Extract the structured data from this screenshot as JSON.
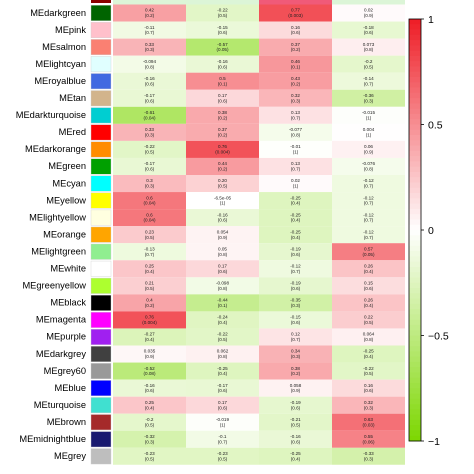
{
  "chart_data": {
    "type": "heatmap",
    "rows": [
      {
        "name": "MEdarkgreen",
        "swatch": "#006400",
        "cells": [
          {
            "v": "0.42",
            "p": "(0.2)"
          },
          {
            "v": "-0.22",
            "p": "(0.5)"
          },
          {
            "v": "0.77",
            "p": "(0.003)"
          },
          {
            "v": "0.02",
            "p": "(0.9)"
          }
        ]
      },
      {
        "name": "MEpink",
        "swatch": "#ffc0cb",
        "cells": [
          {
            "v": "-0.11",
            "p": "(0.7)"
          },
          {
            "v": "-0.15",
            "p": "(0.6)"
          },
          {
            "v": "0.16",
            "p": "(0.6)"
          },
          {
            "v": "-0.18",
            "p": "(0.6)"
          }
        ]
      },
      {
        "name": "MEsalmon",
        "swatch": "#fa8072",
        "cells": [
          {
            "v": "0.33",
            "p": "(0.3)"
          },
          {
            "v": "-0.57",
            "p": "(0.05)"
          },
          {
            "v": "0.37",
            "p": "(0.2)"
          },
          {
            "v": "0.073",
            "p": "(0.8)"
          }
        ]
      },
      {
        "name": "MElightcyan",
        "swatch": "#e0ffff",
        "cells": [
          {
            "v": "-0.094",
            "p": "(0.8)"
          },
          {
            "v": "-0.16",
            "p": "(0.6)"
          },
          {
            "v": "0.46",
            "p": "(0.1)"
          },
          {
            "v": "-0.2",
            "p": "(0.5)"
          }
        ]
      },
      {
        "name": "MEroyalblue",
        "swatch": "#4169e1",
        "cells": [
          {
            "v": "-0.16",
            "p": "(0.6)"
          },
          {
            "v": "0.5",
            "p": "(0.1)"
          },
          {
            "v": "0.43",
            "p": "(0.2)"
          },
          {
            "v": "-0.14",
            "p": "(0.7)"
          }
        ]
      },
      {
        "name": "MEtan",
        "swatch": "#d2b48c",
        "cells": [
          {
            "v": "-0.17",
            "p": "(0.6)"
          },
          {
            "v": "0.17",
            "p": "(0.6)"
          },
          {
            "v": "0.32",
            "p": "(0.3)"
          },
          {
            "v": "-0.36",
            "p": "(0.3)"
          }
        ]
      },
      {
        "name": "MEdarkturquoise",
        "swatch": "#00ced1",
        "cells": [
          {
            "v": "-0.61",
            "p": "(0.04)"
          },
          {
            "v": "0.38",
            "p": "(0.2)"
          },
          {
            "v": "0.13",
            "p": "(0.7)"
          },
          {
            "v": "-0.015",
            "p": "(1)"
          }
        ]
      },
      {
        "name": "MEred",
        "swatch": "#ff0000",
        "cells": [
          {
            "v": "0.33",
            "p": "(0.3)"
          },
          {
            "v": "0.37",
            "p": "(0.2)"
          },
          {
            "v": "-0.077",
            "p": "(0.8)"
          },
          {
            "v": "0.004",
            "p": "(1)"
          }
        ]
      },
      {
        "name": "MEdarkorange",
        "swatch": "#ff8c00",
        "cells": [
          {
            "v": "-0.22",
            "p": "(0.5)"
          },
          {
            "v": "0.76",
            "p": "(0.004)"
          },
          {
            "v": "-0.01",
            "p": "(1)"
          },
          {
            "v": "0.06",
            "p": "(0.9)"
          }
        ]
      },
      {
        "name": "MEgreen",
        "swatch": "#00a000",
        "cells": [
          {
            "v": "-0.17",
            "p": "(0.6)"
          },
          {
            "v": "0.44",
            "p": "(0.2)"
          },
          {
            "v": "0.13",
            "p": "(0.7)"
          },
          {
            "v": "-0.076",
            "p": "(0.8)"
          }
        ]
      },
      {
        "name": "MEcyan",
        "swatch": "#00ffff",
        "cells": [
          {
            "v": "0.3",
            "p": "(0.3)"
          },
          {
            "v": "0.20",
            "p": "(0.5)"
          },
          {
            "v": "0.02",
            "p": "(1)"
          },
          {
            "v": "-0.12",
            "p": "(0.7)"
          }
        ]
      },
      {
        "name": "MEyellow",
        "swatch": "#ffff00",
        "cells": [
          {
            "v": "0.6",
            "p": "(0.04)"
          },
          {
            "v": "-6.5e-05",
            "p": "(1)"
          },
          {
            "v": "-0.25",
            "p": "(0.4)"
          },
          {
            "v": "-0.12",
            "p": "(0.7)"
          }
        ]
      },
      {
        "name": "MElightyellow",
        "swatch": "#ffffe0",
        "cells": [
          {
            "v": "0.6",
            "p": "(0.04)"
          },
          {
            "v": "-0.16",
            "p": "(0.6)"
          },
          {
            "v": "-0.25",
            "p": "(0.4)"
          },
          {
            "v": "-0.12",
            "p": "(0.7)"
          }
        ]
      },
      {
        "name": "MEorange",
        "swatch": "#ffa500",
        "cells": [
          {
            "v": "0.23",
            "p": "(0.5)"
          },
          {
            "v": "0.054",
            "p": "(0.9)"
          },
          {
            "v": "-0.25",
            "p": "(0.4)"
          },
          {
            "v": "-0.12",
            "p": "(0.7)"
          }
        ]
      },
      {
        "name": "MElightgreen",
        "swatch": "#90ee90",
        "cells": [
          {
            "v": "-0.13",
            "p": "(0.7)"
          },
          {
            "v": "0.05",
            "p": "(0.8)"
          },
          {
            "v": "-0.19",
            "p": "(0.6)"
          },
          {
            "v": "0.57",
            "p": "(0.05)"
          }
        ]
      },
      {
        "name": "MEwhite",
        "swatch": "#ffffff",
        "cells": [
          {
            "v": "0.25",
            "p": "(0.4)"
          },
          {
            "v": "0.17",
            "p": "(0.6)"
          },
          {
            "v": "-0.12",
            "p": "(0.7)"
          },
          {
            "v": "0.26",
            "p": "(0.4)"
          }
        ]
      },
      {
        "name": "MEgreenyellow",
        "swatch": "#adff2f",
        "cells": [
          {
            "v": "0.21",
            "p": "(0.5)"
          },
          {
            "v": "-0.098",
            "p": "(0.8)"
          },
          {
            "v": "-0.19",
            "p": "(0.6)"
          },
          {
            "v": "0.15",
            "p": "(0.6)"
          }
        ]
      },
      {
        "name": "MEblack",
        "swatch": "#000000",
        "cells": [
          {
            "v": "0.4",
            "p": "(0.2)"
          },
          {
            "v": "-0.44",
            "p": "(0.1)"
          },
          {
            "v": "-0.35",
            "p": "(0.3)"
          },
          {
            "v": "0.26",
            "p": "(0.4)"
          }
        ]
      },
      {
        "name": "MEmagenta",
        "swatch": "#ff00ff",
        "cells": [
          {
            "v": "0.76",
            "p": "(0.004)"
          },
          {
            "v": "-0.24",
            "p": "(0.4)"
          },
          {
            "v": "-0.15",
            "p": "(0.6)"
          },
          {
            "v": "0.22",
            "p": "(0.5)"
          }
        ]
      },
      {
        "name": "MEpurple",
        "swatch": "#a020f0",
        "cells": [
          {
            "v": "-0.27",
            "p": "(0.4)"
          },
          {
            "v": "-0.22",
            "p": "(0.5)"
          },
          {
            "v": "0.12",
            "p": "(0.7)"
          },
          {
            "v": "0.064",
            "p": "(0.8)"
          }
        ]
      },
      {
        "name": "MEdarkgrey",
        "swatch": "#404040",
        "cells": [
          {
            "v": "0.035",
            "p": "(0.9)"
          },
          {
            "v": "0.062",
            "p": "(0.8)"
          },
          {
            "v": "0.34",
            "p": "(0.3)"
          },
          {
            "v": "-0.25",
            "p": "(0.4)"
          }
        ]
      },
      {
        "name": "MEgrey60",
        "swatch": "#999999",
        "cells": [
          {
            "v": "-0.52",
            "p": "(0.08)"
          },
          {
            "v": "-0.25",
            "p": "(0.4)"
          },
          {
            "v": "0.38",
            "p": "(0.2)"
          },
          {
            "v": "-0.22",
            "p": "(0.5)"
          }
        ]
      },
      {
        "name": "MEblue",
        "swatch": "#0000ff",
        "cells": [
          {
            "v": "-0.16",
            "p": "(0.6)"
          },
          {
            "v": "-0.17",
            "p": "(0.6)"
          },
          {
            "v": "0.058",
            "p": "(0.9)"
          },
          {
            "v": "0.16",
            "p": "(0.6)"
          }
        ]
      },
      {
        "name": "MEturquoise",
        "swatch": "#40e0d0",
        "cells": [
          {
            "v": "0.25",
            "p": "(0.4)"
          },
          {
            "v": "0.17",
            "p": "(0.6)"
          },
          {
            "v": "-0.19",
            "p": "(0.6)"
          },
          {
            "v": "0.32",
            "p": "(0.3)"
          }
        ]
      },
      {
        "name": "MEbrown",
        "swatch": "#a52a2a",
        "cells": [
          {
            "v": "-0.2",
            "p": "(0.5)"
          },
          {
            "v": "-0.019",
            "p": "(1)"
          },
          {
            "v": "-0.21",
            "p": "(0.5)"
          },
          {
            "v": "0.63",
            "p": "(0.03)"
          }
        ]
      },
      {
        "name": "MEmidnightblue",
        "swatch": "#191970",
        "cells": [
          {
            "v": "-0.32",
            "p": "(0.3)"
          },
          {
            "v": "-0.1",
            "p": "(0.7)"
          },
          {
            "v": "-0.16",
            "p": "(0.6)"
          },
          {
            "v": "0.55",
            "p": "(0.06)"
          }
        ]
      },
      {
        "name": "MEgrey",
        "swatch": "#bebebe",
        "cells": [
          {
            "v": "-0.23",
            "p": "(0.5)"
          },
          {
            "v": "-0.23",
            "p": "(0.5)"
          },
          {
            "v": "-0.25",
            "p": "(0.4)"
          },
          {
            "v": "-0.33",
            "p": "(0.3)"
          }
        ]
      }
    ],
    "colorbar": {
      "min": -1,
      "max": 1,
      "ticks": [
        1,
        0.5,
        0,
        -0.5,
        -1
      ],
      "tick_labels": [
        "1",
        "0.5",
        "0",
        "−0.5",
        "−1"
      ],
      "low_color": "#7cd600",
      "mid_color": "#ffffff",
      "high_color": "#ee1c25"
    }
  }
}
